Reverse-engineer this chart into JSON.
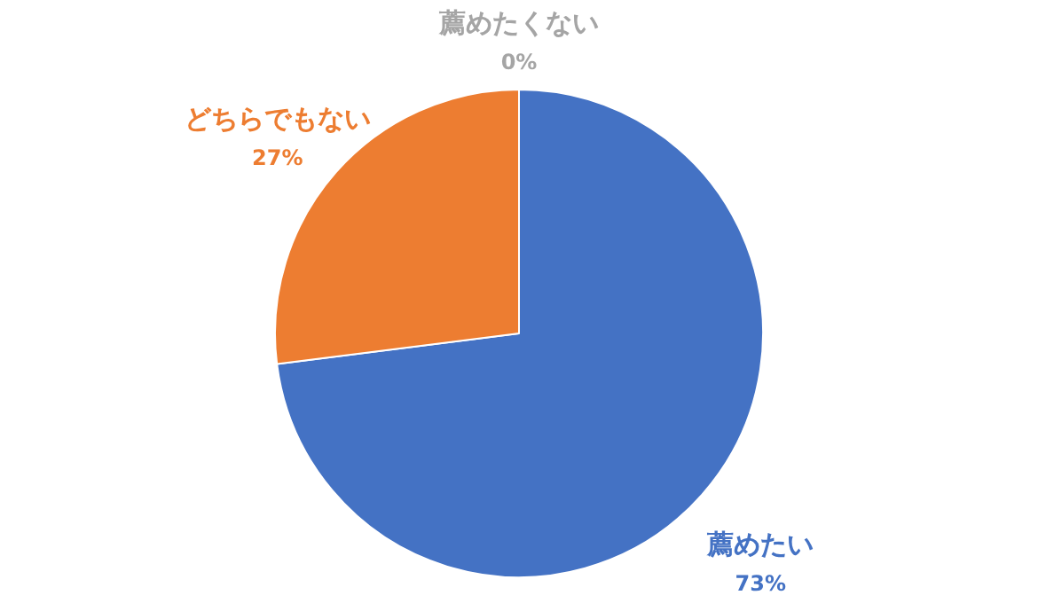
{
  "chart_data": {
    "type": "pie",
    "categories": [
      "薦めたい",
      "どちらでもない",
      "薦めたくない"
    ],
    "values": [
      73,
      27,
      0
    ],
    "colors": [
      "#4472c4",
      "#ed7d31",
      "#a5a5a5"
    ],
    "value_labels": [
      "73%",
      "27%",
      "0%"
    ],
    "legend": false
  }
}
